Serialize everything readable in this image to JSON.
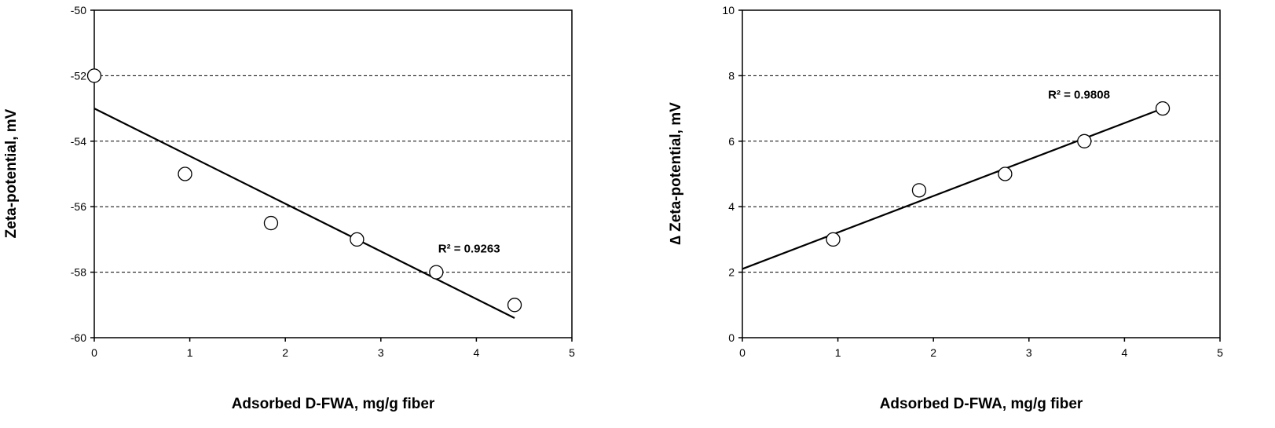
{
  "chart_data": [
    {
      "type": "scatter",
      "xlabel": "Adsorbed D-FWA, mg/g fiber",
      "ylabel": "Zeta-potential, mV",
      "xlim": [
        0,
        5
      ],
      "ylim": [
        -60,
        -50
      ],
      "xticks": [
        "0",
        "1",
        "2",
        "3",
        "4",
        "5"
      ],
      "yticks": [
        "-60",
        "-58",
        "-56",
        "-54",
        "-52",
        "-50"
      ],
      "grid": "horizontal-dashed",
      "points": [
        {
          "x": 0,
          "y": -52
        },
        {
          "x": 0.95,
          "y": -55
        },
        {
          "x": 1.85,
          "y": -56.5
        },
        {
          "x": 2.75,
          "y": -57
        },
        {
          "x": 3.58,
          "y": -58
        },
        {
          "x": 4.4,
          "y": -59
        }
      ],
      "trendline": {
        "x1": 0,
        "y1": -53,
        "x2": 4.4,
        "y2": -59.4
      },
      "annotation": {
        "text": "R² = 0.9263",
        "x": 3.6,
        "y": -57.4
      }
    },
    {
      "type": "scatter",
      "xlabel": "Adsorbed D-FWA, mg/g fiber",
      "ylabel": "∆ Zeta-potential, mV",
      "xlim": [
        0,
        5
      ],
      "ylim": [
        0,
        10
      ],
      "xticks": [
        "0",
        "1",
        "2",
        "3",
        "4",
        "5"
      ],
      "yticks": [
        "0",
        "2",
        "4",
        "6",
        "8",
        "10"
      ],
      "grid": "horizontal-dashed",
      "points": [
        {
          "x": 0.95,
          "y": 3
        },
        {
          "x": 1.85,
          "y": 4.5
        },
        {
          "x": 2.75,
          "y": 5
        },
        {
          "x": 3.58,
          "y": 6
        },
        {
          "x": 4.4,
          "y": 7
        }
      ],
      "trendline": {
        "x1": 0,
        "y1": 2.1,
        "x2": 4.4,
        "y2": 7
      },
      "annotation": {
        "text": "R² = 0.9808",
        "x": 3.2,
        "y": 7.3
      }
    }
  ]
}
